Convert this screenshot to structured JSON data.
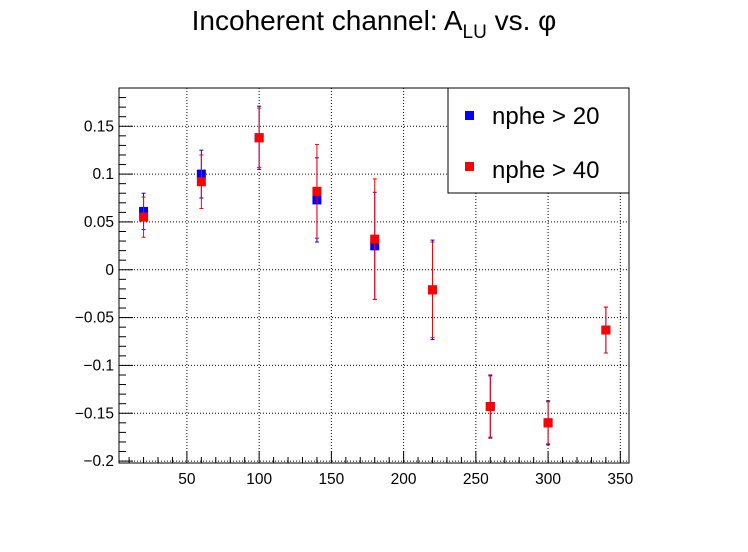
{
  "chart_data": {
    "type": "scatter",
    "title": {
      "main": "Incoherent channel: A",
      "subscript": "LU",
      "suffix": " vs. ",
      "symbol": "φ"
    },
    "xlabel": "",
    "ylabel": "",
    "xlim": [
      3,
      356
    ],
    "ylim": [
      -0.202,
      0.19
    ],
    "x_ticks": [
      50,
      100,
      150,
      200,
      250,
      300,
      350
    ],
    "x_tick_labels": [
      "50",
      "100",
      "150",
      "200",
      "250",
      "300",
      "350"
    ],
    "y_ticks": [
      0.15,
      0.1,
      0.05,
      0,
      -0.05,
      -0.1,
      -0.15,
      -0.2
    ],
    "y_tick_labels": [
      "0.15",
      "0.1",
      "0.05",
      "0",
      "−0.05",
      "−0.1",
      "−0.15",
      "−0.2"
    ],
    "grid": true,
    "legend_position": "top-right",
    "series": [
      {
        "name": "nphe > 20",
        "color": "#0000ff",
        "marker": "square",
        "points": [
          {
            "x": 20,
            "y": 0.061,
            "err": 0.019
          },
          {
            "x": 60,
            "y": 0.1,
            "err": 0.025
          },
          {
            "x": 100,
            "y": 0.138,
            "err": 0.033
          },
          {
            "x": 140,
            "y": 0.073,
            "err": 0.044
          },
          {
            "x": 180,
            "y": 0.025,
            "err": 0.056
          },
          {
            "x": 220,
            "y": -0.021,
            "err": 0.052
          },
          {
            "x": 260,
            "y": -0.143,
            "err": 0.033
          },
          {
            "x": 300,
            "y": -0.16,
            "err": 0.023
          },
          {
            "x": 340,
            "y": -0.063,
            "err": 0.024
          }
        ]
      },
      {
        "name": "nphe > 40",
        "color": "#ff0000",
        "marker": "square",
        "points": [
          {
            "x": 20,
            "y": 0.055,
            "err": 0.021
          },
          {
            "x": 60,
            "y": 0.092,
            "err": 0.028
          },
          {
            "x": 100,
            "y": 0.138,
            "err": 0.031
          },
          {
            "x": 140,
            "y": 0.082,
            "err": 0.049
          },
          {
            "x": 180,
            "y": 0.032,
            "err": 0.063
          },
          {
            "x": 220,
            "y": -0.021,
            "err": 0.05
          },
          {
            "x": 260,
            "y": -0.143,
            "err": 0.032
          },
          {
            "x": 300,
            "y": -0.16,
            "err": 0.022
          },
          {
            "x": 340,
            "y": -0.063,
            "err": 0.024
          }
        ]
      }
    ]
  }
}
